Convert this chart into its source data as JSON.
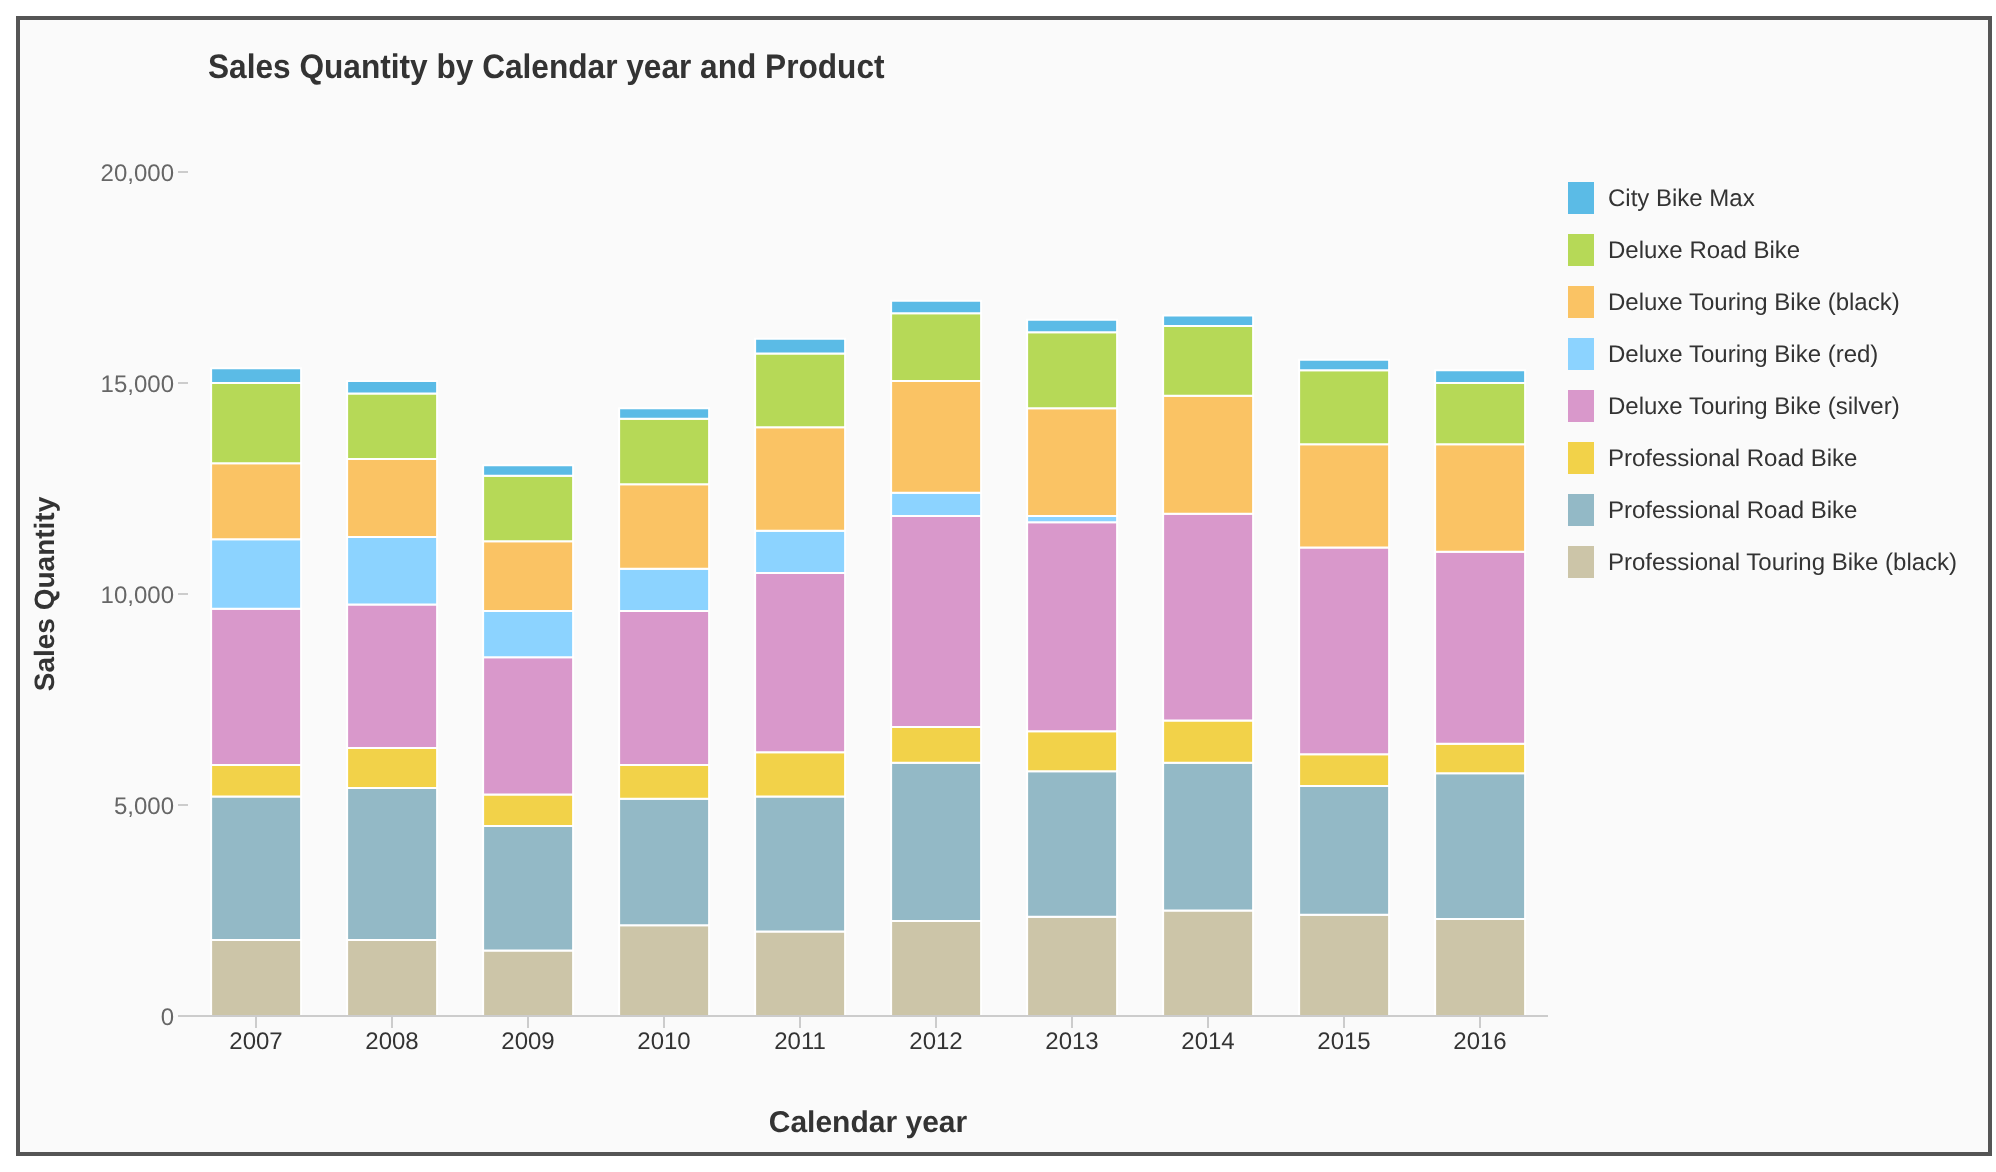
{
  "chart_data": {
    "type": "bar",
    "stacked": true,
    "title": "Sales Quantity by Calendar year and Product",
    "xlabel": "Calendar year",
    "ylabel": "Sales Quantity",
    "categories": [
      "2007",
      "2008",
      "2009",
      "2010",
      "2011",
      "2012",
      "2013",
      "2014",
      "2015",
      "2016"
    ],
    "ylim": [
      0,
      20000
    ],
    "yticks": [
      {
        "value": 0,
        "label": "0"
      },
      {
        "value": 5000,
        "label": "5,000"
      },
      {
        "value": 10000,
        "label": "10,000"
      },
      {
        "value": 15000,
        "label": "15,000"
      },
      {
        "value": 20000,
        "label": "20,000"
      }
    ],
    "legend": "right",
    "series": [
      {
        "name": "Professional Touring Bike (black)",
        "color": "#ccc5a8",
        "values": [
          1800,
          1800,
          1550,
          2150,
          2000,
          2250,
          2350,
          2500,
          2400,
          2300
        ]
      },
      {
        "name": "Professional Road Bike",
        "color": "#93b9c6",
        "values": [
          3400,
          3600,
          2950,
          3000,
          3200,
          3750,
          3450,
          3500,
          3050,
          3450
        ]
      },
      {
        "name": "Professional Road Bike",
        "color": "#f2d249",
        "values": [
          750,
          950,
          750,
          800,
          1050,
          850,
          950,
          1000,
          750,
          700
        ]
      },
      {
        "name": "Deluxe Touring Bike (silver)",
        "color": "#d998cb",
        "values": [
          3700,
          3400,
          3250,
          3650,
          4250,
          5000,
          4950,
          4900,
          4900,
          4550
        ]
      },
      {
        "name": "Deluxe Touring Bike (red)",
        "color": "#8cd3ff",
        "values": [
          1650,
          1600,
          1100,
          1000,
          1000,
          550,
          150,
          0,
          0,
          0
        ]
      },
      {
        "name": "Deluxe Touring Bike (black)",
        "color": "#fac364",
        "values": [
          1800,
          1850,
          1650,
          2000,
          2450,
          2650,
          2550,
          2800,
          2450,
          2550
        ]
      },
      {
        "name": "Deluxe Road Bike",
        "color": "#b6d957",
        "values": [
          1900,
          1550,
          1550,
          1550,
          1750,
          1600,
          1800,
          1650,
          1750,
          1450
        ]
      },
      {
        "name": "City Bike Max",
        "color": "#5bbbe6",
        "values": [
          350,
          300,
          250,
          250,
          350,
          300,
          300,
          250,
          250,
          300
        ]
      }
    ]
  }
}
